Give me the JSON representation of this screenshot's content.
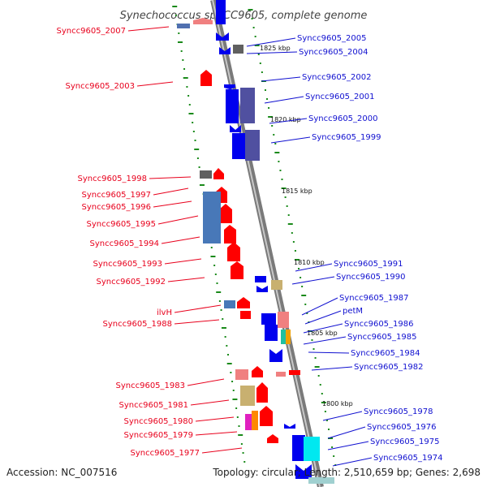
{
  "title": "Synechococcus sp. CC9605, complete genome",
  "footer": {
    "accession": "Accession: NC_007516",
    "topology": "Topology: circular; Length: 2,510,659 bp; Genes: 2,698"
  },
  "colors": {
    "red_label": "#e8001c",
    "blue_label": "#1010d0",
    "backbone": "#8a8a8a",
    "tick": "#1a8a1a",
    "forward_gene": "#ff0000",
    "reverse_gene": "#0000ee"
  },
  "kbp_markers": [
    "1825 kbp",
    "1820 kbp",
    "1815 kbp",
    "1810 kbp",
    "1805 kbp",
    "1800 kbp"
  ],
  "left_labels": [
    "Syncc9605_2007",
    "Syncc9605_2003",
    "Syncc9605_1998",
    "Syncc9605_1997",
    "Syncc9605_1996",
    "Syncc9605_1995",
    "Syncc9605_1994",
    "Syncc9605_1993",
    "Syncc9605_1992",
    "ilvH",
    "Syncc9605_1988",
    "Syncc9605_1983",
    "Syncc9605_1981",
    "Syncc9605_1980",
    "Syncc9605_1979",
    "Syncc9605_1977"
  ],
  "right_labels": [
    "Syncc9605_2005",
    "Syncc9605_2004",
    "Syncc9605_2002",
    "Syncc9605_2001",
    "Syncc9605_2000",
    "Syncc9605_1999",
    "Syncc9605_1991",
    "Syncc9605_1990",
    "Syncc9605_1987",
    "petM",
    "Syncc9605_1986",
    "Syncc9605_1985",
    "Syncc9605_1984",
    "Syncc9605_1982",
    "Syncc9605_1978",
    "Syncc9605_1976",
    "Syncc9605_1975",
    "Syncc9605_1974"
  ]
}
